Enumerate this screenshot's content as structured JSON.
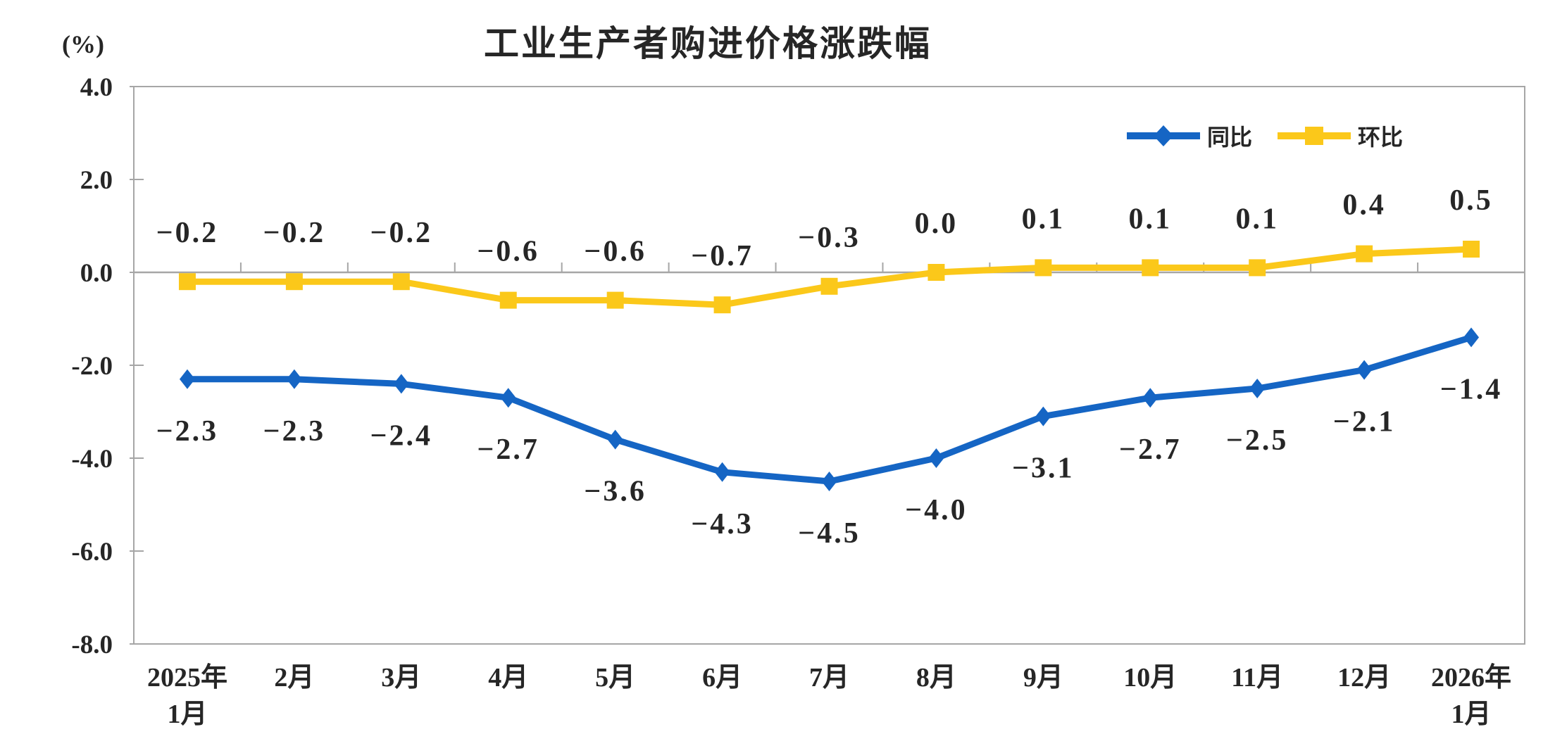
{
  "chart_data": {
    "type": "line",
    "title": "工业生产者购进价格涨跌幅",
    "unit_label": "(%)",
    "axis_color": "#a6a6a6",
    "text_color": "#262626",
    "grid": "off",
    "legend_position": "top-right",
    "ylim": [
      -8,
      4
    ],
    "yticks": [
      "4.0",
      "2.0",
      "0.0",
      "-2.0",
      "-4.0",
      "-6.0",
      "-8.0"
    ],
    "categories": [
      [
        "2025年",
        "1月"
      ],
      [
        "2月"
      ],
      [
        "3月"
      ],
      [
        "4月"
      ],
      [
        "5月"
      ],
      [
        "6月"
      ],
      [
        "7月"
      ],
      [
        "8月"
      ],
      [
        "9月"
      ],
      [
        "10月"
      ],
      [
        "11月"
      ],
      [
        "12月"
      ],
      [
        "2026年",
        "1月"
      ]
    ],
    "series": [
      {
        "name": "同比",
        "color": "#1565c4",
        "marker": "diamond",
        "label_position": "below",
        "values": [
          -2.3,
          -2.3,
          -2.4,
          -2.7,
          -3.6,
          -4.3,
          -4.5,
          -4.0,
          -3.1,
          -2.7,
          -2.5,
          -2.1,
          -1.4
        ]
      },
      {
        "name": "环比",
        "color": "#fbc81a",
        "marker": "square",
        "label_position": "above",
        "values": [
          -0.2,
          -0.2,
          -0.2,
          -0.6,
          -0.6,
          -0.7,
          -0.3,
          0.0,
          0.1,
          0.1,
          0.1,
          0.4,
          0.5
        ]
      }
    ]
  }
}
